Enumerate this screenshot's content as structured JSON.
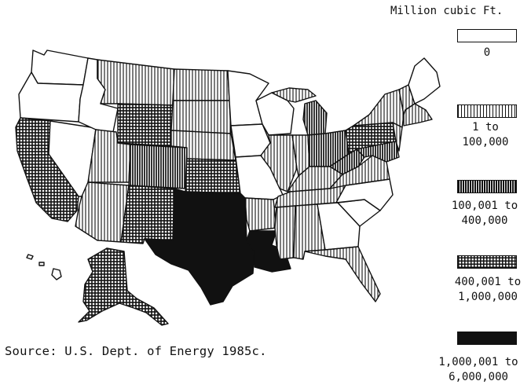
{
  "legend": {
    "title": "Million cubic Ft.",
    "classes": [
      {
        "id": "c0",
        "label_lines": [
          "0"
        ],
        "pattern": "blank"
      },
      {
        "id": "c1",
        "label_lines": [
          "1 to",
          "100,000"
        ],
        "pattern": "vertical-lines"
      },
      {
        "id": "c2",
        "label_lines": [
          "100,001 to",
          "400,000"
        ],
        "pattern": "dense-vertical"
      },
      {
        "id": "c3",
        "label_lines": [
          "400,001 to",
          "1,000,000"
        ],
        "pattern": "crosshatch"
      },
      {
        "id": "c4",
        "label_lines": [
          "1,000,001 to",
          "6,000,000"
        ],
        "pattern": "solid-black"
      }
    ]
  },
  "source": "Source:  U.S. Dept. of Energy 1985c.",
  "colors": {
    "ink": "#111111",
    "paper": "#ffffff"
  }
}
